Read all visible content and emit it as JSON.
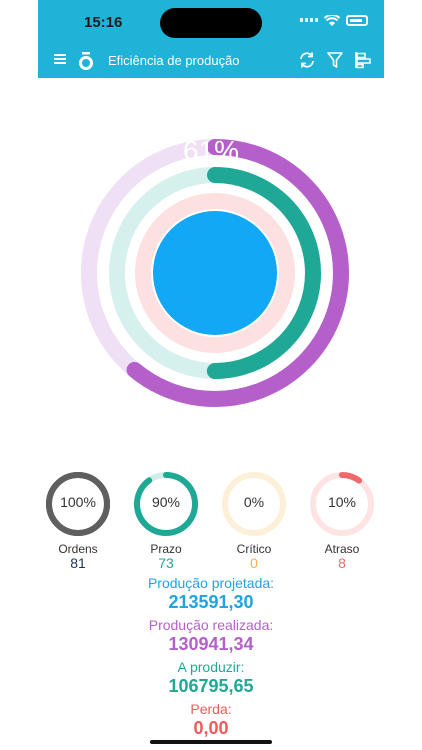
{
  "status": {
    "time": "15:16"
  },
  "header": {
    "title": "Eficiência de produção"
  },
  "main": {
    "center_percent": "61%"
  },
  "colors": {
    "accent": "#1fb3d8",
    "center": "#12a8f5",
    "ring_purple": "#b55fcb",
    "ring_teal": "#20a896",
    "ring_pink": "#fde0e0"
  },
  "summary": [
    {
      "percent": "100%",
      "label": "Ordens",
      "value": "81",
      "color": "#5f5f5f",
      "track": "#5f5f5f",
      "fraction": 1.0,
      "value_color": "#1b3559"
    },
    {
      "percent": "90%",
      "label": "Prazo",
      "value": "73",
      "color": "#20a896",
      "track": "#cfeeea",
      "fraction": 0.9,
      "value_color": "#20a896"
    },
    {
      "percent": "0%",
      "label": "Crítico",
      "value": "0",
      "color": "#f6c06a",
      "track": "#fdf0d9",
      "fraction": 0.0,
      "value_color": "#f6b04c"
    },
    {
      "percent": "10%",
      "label": "Atraso",
      "value": "8",
      "color": "#ee6a6a",
      "track": "#fde3e3",
      "fraction": 0.1,
      "value_color": "#ee6a6a"
    }
  ],
  "stats": [
    {
      "label": "Produção projetada:",
      "value": "213591,30",
      "color": "#1fa4e0"
    },
    {
      "label": "Produção realizada:",
      "value": "130941,34",
      "color": "#b55fcb"
    },
    {
      "label": "A produzir:",
      "value": "106795,65",
      "color": "#20a896"
    },
    {
      "label": "Perda:",
      "value": "0,00",
      "color": "#ee5b5b"
    }
  ],
  "rings": [
    {
      "name": "produzido",
      "fraction": 0.61,
      "color": "#b55fcb",
      "track": "#efe0f5"
    },
    {
      "name": "a-produzir",
      "fraction": 0.5,
      "color": "#20a896",
      "track": "#d6f0ee"
    },
    {
      "name": "perda",
      "fraction": 0.0,
      "color": "#ee6a6a",
      "track": "#fde0e0"
    }
  ]
}
